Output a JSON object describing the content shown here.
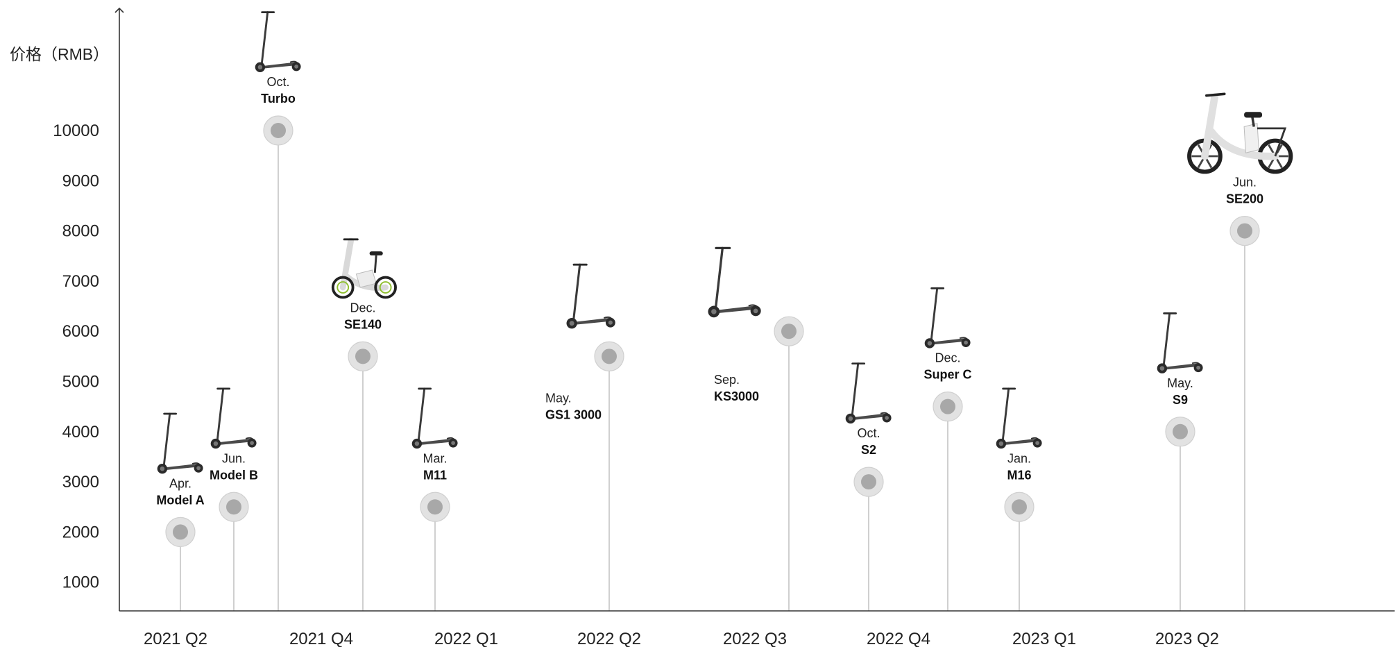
{
  "chart_data": {
    "type": "scatter",
    "title": "",
    "ylabel": "价格（RMB）",
    "xlabel": "",
    "ylim": [
      400,
      12300
    ],
    "yticks": [
      1000,
      2000,
      3000,
      4000,
      5000,
      6000,
      7000,
      8000,
      9000,
      10000
    ],
    "quarters": [
      "2021 Q2",
      "2021 Q4",
      "2022 Q1",
      "2022 Q2",
      "2022 Q3",
      "2022 Q4",
      "2023 Q1",
      "2023 Q2"
    ],
    "points": [
      {
        "quarter": "2021 Q2",
        "month": "Apr.",
        "model": "Model A",
        "price": 2000,
        "vehicle": "kick-scooter"
      },
      {
        "quarter": "2021 Q2",
        "month": "Jun.",
        "model": "Model B",
        "price": 2500,
        "vehicle": "kick-scooter"
      },
      {
        "quarter": "2021 Q4",
        "month": "Oct.",
        "model": "Turbo",
        "price": 10000,
        "vehicle": "kick-scooter"
      },
      {
        "quarter": "2021 Q4",
        "month": "Dec.",
        "model": "SE140",
        "price": 5500,
        "vehicle": "seated-ebike"
      },
      {
        "quarter": "2022 Q1",
        "month": "Mar.",
        "model": "M11",
        "price": 2500,
        "vehicle": "kick-scooter"
      },
      {
        "quarter": "2022 Q2",
        "month": "May.",
        "model": "GS1 3000",
        "price": 5500,
        "vehicle": "kick-scooter"
      },
      {
        "quarter": "2022 Q3",
        "month": "Sep.",
        "model": "KS3000",
        "price": 6000,
        "vehicle": "kick-scooter"
      },
      {
        "quarter": "2022 Q4",
        "month": "Oct.",
        "model": "S2",
        "price": 3000,
        "vehicle": "kick-scooter"
      },
      {
        "quarter": "2022 Q4",
        "month": "Dec.",
        "model": "Super C",
        "price": 4500,
        "vehicle": "kick-scooter"
      },
      {
        "quarter": "2023 Q1",
        "month": "Jan.",
        "model": "M16",
        "price": 2500,
        "vehicle": "kick-scooter"
      },
      {
        "quarter": "2023 Q2",
        "month": "May.",
        "model": "S9",
        "price": 4000,
        "vehicle": "kick-scooter"
      },
      {
        "quarter": "2023 Q2",
        "month": "Jun.",
        "model": "SE200",
        "price": 8000,
        "vehicle": "city-ebike"
      }
    ],
    "colors": {
      "axis": "#333333",
      "stem": "#bbbbbb",
      "marker_outer": "#e2e2e2",
      "marker_inner": "#a8a8a8"
    },
    "grid": false,
    "legend": "none"
  }
}
